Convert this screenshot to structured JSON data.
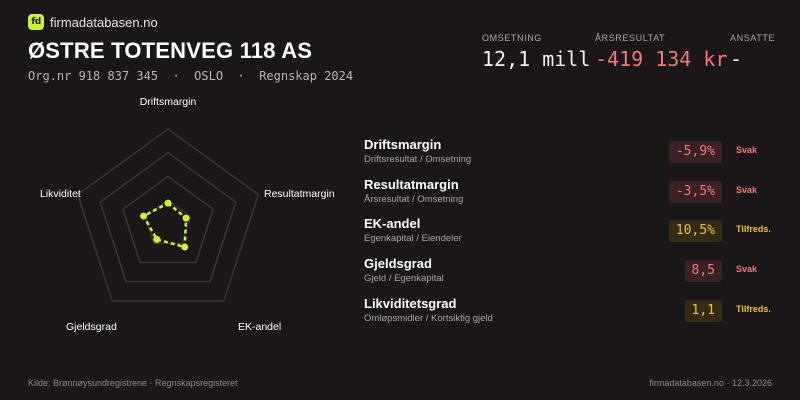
{
  "brand": {
    "logo_text": "fd",
    "name": "firmadatabasen.no"
  },
  "company": {
    "name": "ØSTRE TOTENVEG 118 AS",
    "meta": "Org.nr 918 837 345  ·  OSLO  ·  Regnskap 2024"
  },
  "kpis": [
    {
      "label": "OMSETNING",
      "value": "12,1 mill",
      "negative": false
    },
    {
      "label": "ÅRSRESULTAT",
      "value": "-419 134 kr",
      "negative": true
    },
    {
      "label": "ANSATTE",
      "value": "-",
      "negative": false
    }
  ],
  "radar": {
    "axes": [
      "Driftsmargin",
      "Resultatmargin",
      "EK-andel",
      "Gjeldsgrad",
      "Likviditet"
    ],
    "scores": [
      0.22,
      0.2,
      0.3,
      0.2,
      0.27
    ],
    "colors": {
      "grid": "#3a3436",
      "series": "#c8f23a"
    }
  },
  "ratios": [
    {
      "name": "Driftsmargin",
      "formula": "Driftsresultat / Omsetning",
      "value": "-5,9%",
      "status": "Svak",
      "tone": "svak"
    },
    {
      "name": "Resultatmargin",
      "formula": "Årsresultat / Omsetning",
      "value": "-3,5%",
      "status": "Svak",
      "tone": "svak"
    },
    {
      "name": "EK-andel",
      "formula": "Egenkapital / Eiendeler",
      "value": "10,5%",
      "status": "Tilfreds.",
      "tone": "tilf"
    },
    {
      "name": "Gjeldsgrad",
      "formula": "Gjeld / Egenkapital",
      "value": "8,5",
      "status": "Svak",
      "tone": "svak"
    },
    {
      "name": "Likviditetsgrad",
      "formula": "Omløpsmidler / Kortsiktig gjeld",
      "value": "1,1",
      "status": "Tilfreds.",
      "tone": "tilf"
    }
  ],
  "footer": {
    "source": "Kilde: Brønnøysundregistrene · Regnskapsregisteret",
    "site_date": "firmadatabasen.no · 12.3.2026"
  }
}
